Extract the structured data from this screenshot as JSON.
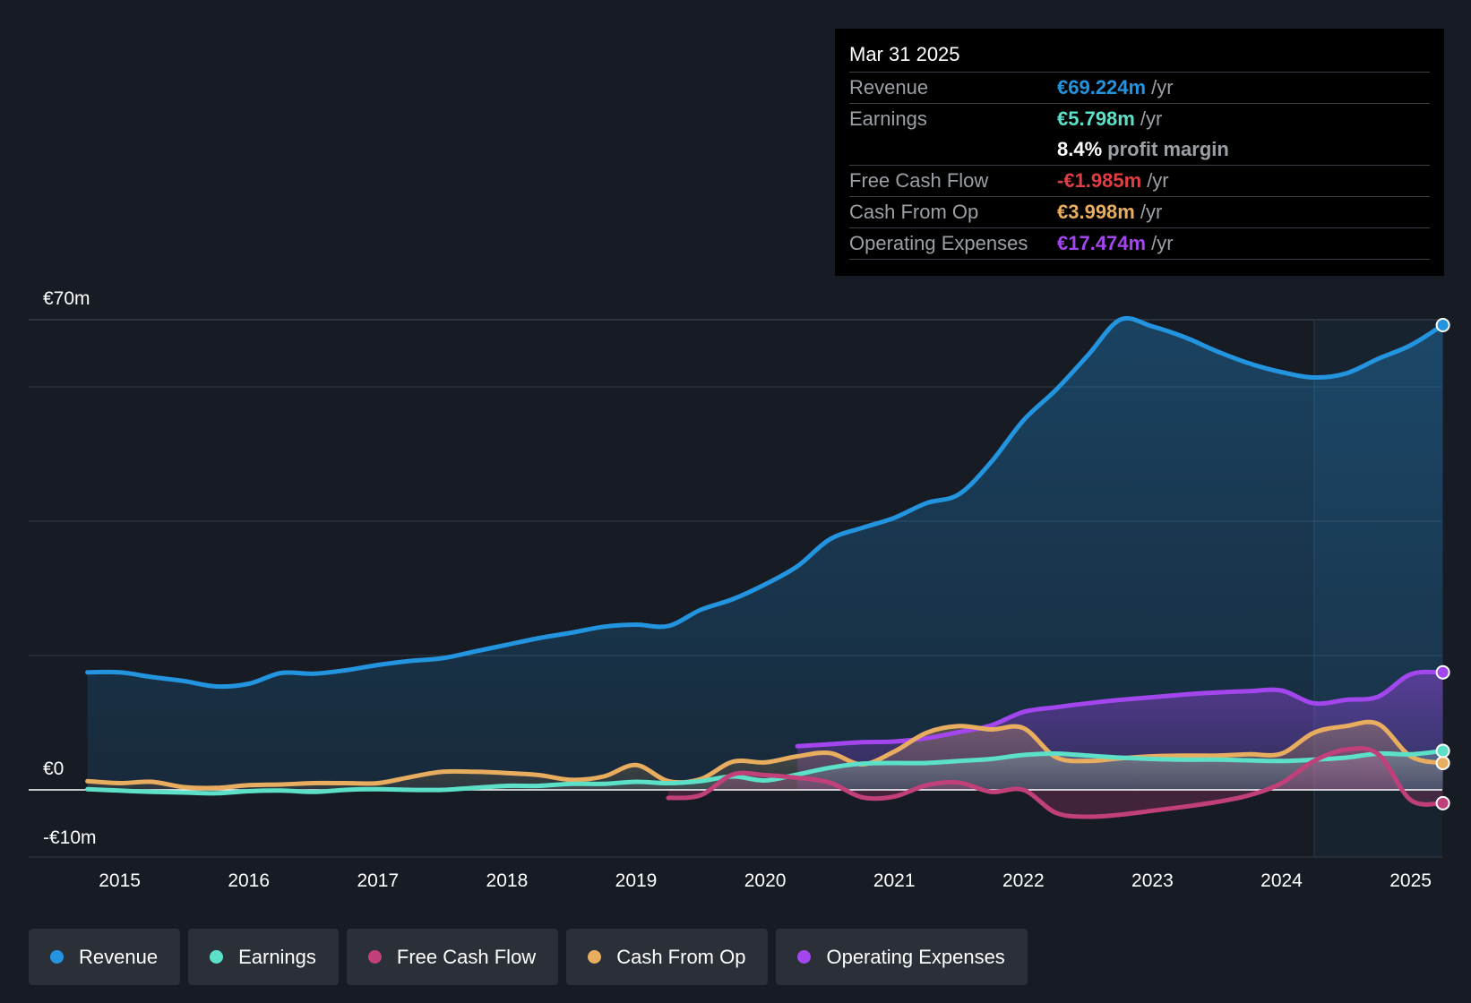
{
  "tooltip": {
    "date": "Mar 31 2025",
    "rows": {
      "revenue": {
        "label": "Revenue",
        "value": "€69.224m",
        "unit": "/yr"
      },
      "earnings": {
        "label": "Earnings",
        "value": "€5.798m",
        "unit": "/yr"
      },
      "margin": {
        "value": "8.4%",
        "unit": "profit margin"
      },
      "fcf": {
        "label": "Free Cash Flow",
        "value": "-€1.985m",
        "unit": "/yr"
      },
      "cfo": {
        "label": "Cash From Op",
        "value": "€3.998m",
        "unit": "/yr"
      },
      "opex": {
        "label": "Operating Expenses",
        "value": "€17.474m",
        "unit": "/yr"
      }
    }
  },
  "legend": [
    {
      "label": "Revenue",
      "color": "#2394df"
    },
    {
      "label": "Earnings",
      "color": "#5de0c8"
    },
    {
      "label": "Free Cash Flow",
      "color": "#c2407a"
    },
    {
      "label": "Cash From Op",
      "color": "#e8ad5e"
    },
    {
      "label": "Operating Expenses",
      "color": "#a346ee"
    }
  ],
  "chart_data": {
    "type": "area",
    "title": "",
    "y_tick_labels": [
      "€70m",
      "€0",
      "-€10m"
    ],
    "ylim": [
      -10,
      70
    ],
    "xlim": [
      2014.3,
      2025.25
    ],
    "x_tick_labels": [
      "2015",
      "2016",
      "2017",
      "2018",
      "2019",
      "2020",
      "2021",
      "2022",
      "2023",
      "2024",
      "2025"
    ],
    "x_ticks": [
      2015,
      2016,
      2017,
      2018,
      2019,
      2020,
      2021,
      2022,
      2023,
      2024,
      2025
    ],
    "gridlines": [
      70,
      60,
      40,
      20,
      0,
      -10
    ],
    "highlight_start": 2024.25,
    "series": [
      {
        "name": "Revenue",
        "color": "#2394df",
        "fill": true,
        "points": [
          [
            2014.75,
            17.5
          ],
          [
            2015.0,
            17.5
          ],
          [
            2015.25,
            16.8
          ],
          [
            2015.5,
            16.2
          ],
          [
            2015.75,
            15.4
          ],
          [
            2016.0,
            15.8
          ],
          [
            2016.25,
            17.4
          ],
          [
            2016.5,
            17.3
          ],
          [
            2016.75,
            17.8
          ],
          [
            2017.0,
            18.6
          ],
          [
            2017.25,
            19.2
          ],
          [
            2017.5,
            19.6
          ],
          [
            2017.75,
            20.6
          ],
          [
            2018.0,
            21.6
          ],
          [
            2018.25,
            22.6
          ],
          [
            2018.5,
            23.4
          ],
          [
            2018.75,
            24.3
          ],
          [
            2019.0,
            24.6
          ],
          [
            2019.25,
            24.4
          ],
          [
            2019.5,
            26.8
          ],
          [
            2019.75,
            28.4
          ],
          [
            2020.0,
            30.6
          ],
          [
            2020.25,
            33.3
          ],
          [
            2020.5,
            37.3
          ],
          [
            2020.75,
            39.0
          ],
          [
            2021.0,
            40.5
          ],
          [
            2021.25,
            42.7
          ],
          [
            2021.5,
            44.0
          ],
          [
            2021.75,
            48.8
          ],
          [
            2022.0,
            55.0
          ],
          [
            2022.25,
            59.5
          ],
          [
            2022.5,
            64.7
          ],
          [
            2022.75,
            70.0
          ],
          [
            2023.0,
            69.0
          ],
          [
            2023.25,
            67.4
          ],
          [
            2023.5,
            65.3
          ],
          [
            2023.75,
            63.5
          ],
          [
            2024.0,
            62.2
          ],
          [
            2024.25,
            61.4
          ],
          [
            2024.5,
            62.0
          ],
          [
            2024.75,
            64.2
          ],
          [
            2025.0,
            66.2
          ],
          [
            2025.25,
            69.2
          ]
        ]
      },
      {
        "name": "Operating Expenses",
        "color": "#a346ee",
        "fill": true,
        "points": [
          [
            2020.25,
            6.5
          ],
          [
            2020.5,
            6.8
          ],
          [
            2020.75,
            7.1
          ],
          [
            2021.0,
            7.2
          ],
          [
            2021.25,
            7.7
          ],
          [
            2021.5,
            8.6
          ],
          [
            2021.75,
            9.6
          ],
          [
            2022.0,
            11.6
          ],
          [
            2022.25,
            12.3
          ],
          [
            2022.5,
            12.9
          ],
          [
            2022.75,
            13.4
          ],
          [
            2023.0,
            13.8
          ],
          [
            2023.25,
            14.2
          ],
          [
            2023.5,
            14.5
          ],
          [
            2023.75,
            14.7
          ],
          [
            2024.0,
            14.8
          ],
          [
            2024.25,
            12.9
          ],
          [
            2024.5,
            13.4
          ],
          [
            2024.75,
            13.9
          ],
          [
            2025.0,
            17.2
          ],
          [
            2025.25,
            17.5
          ]
        ]
      },
      {
        "name": "Cash From Op",
        "color": "#e8ad5e",
        "fill": true,
        "points": [
          [
            2014.75,
            1.3
          ],
          [
            2015.0,
            1.0
          ],
          [
            2015.25,
            1.2
          ],
          [
            2015.5,
            0.4
          ],
          [
            2015.75,
            0.3
          ],
          [
            2016.0,
            0.7
          ],
          [
            2016.25,
            0.8
          ],
          [
            2016.5,
            1.0
          ],
          [
            2016.75,
            1.0
          ],
          [
            2017.0,
            1.0
          ],
          [
            2017.25,
            1.9
          ],
          [
            2017.5,
            2.7
          ],
          [
            2017.75,
            2.7
          ],
          [
            2018.0,
            2.5
          ],
          [
            2018.25,
            2.2
          ],
          [
            2018.5,
            1.5
          ],
          [
            2018.75,
            2.0
          ],
          [
            2019.0,
            3.7
          ],
          [
            2019.25,
            1.3
          ],
          [
            2019.5,
            1.6
          ],
          [
            2019.75,
            4.2
          ],
          [
            2020.0,
            4.1
          ],
          [
            2020.25,
            5.0
          ],
          [
            2020.5,
            5.5
          ],
          [
            2020.75,
            3.8
          ],
          [
            2021.0,
            5.7
          ],
          [
            2021.25,
            8.5
          ],
          [
            2021.5,
            9.5
          ],
          [
            2021.75,
            9.0
          ],
          [
            2022.0,
            9.2
          ],
          [
            2022.25,
            4.9
          ],
          [
            2022.5,
            4.3
          ],
          [
            2022.75,
            4.7
          ],
          [
            2023.0,
            5.0
          ],
          [
            2023.25,
            5.1
          ],
          [
            2023.5,
            5.1
          ],
          [
            2023.75,
            5.3
          ],
          [
            2024.0,
            5.4
          ],
          [
            2024.25,
            8.5
          ],
          [
            2024.5,
            9.5
          ],
          [
            2024.75,
            9.8
          ],
          [
            2025.0,
            5.0
          ],
          [
            2025.25,
            4.0
          ]
        ]
      },
      {
        "name": "Earnings",
        "color": "#5de0c8",
        "fill": true,
        "points": [
          [
            2014.75,
            0.1
          ],
          [
            2015.0,
            -0.1
          ],
          [
            2015.25,
            -0.3
          ],
          [
            2015.5,
            -0.4
          ],
          [
            2015.75,
            -0.5
          ],
          [
            2016.0,
            -0.2
          ],
          [
            2016.25,
            -0.1
          ],
          [
            2016.5,
            -0.3
          ],
          [
            2016.75,
            0.0
          ],
          [
            2017.0,
            0.1
          ],
          [
            2017.25,
            0.0
          ],
          [
            2017.5,
            0.0
          ],
          [
            2017.75,
            0.3
          ],
          [
            2018.0,
            0.6
          ],
          [
            2018.25,
            0.6
          ],
          [
            2018.5,
            0.9
          ],
          [
            2018.75,
            0.9
          ],
          [
            2019.0,
            1.2
          ],
          [
            2019.25,
            1.0
          ],
          [
            2019.5,
            1.3
          ],
          [
            2019.75,
            2.0
          ],
          [
            2020.0,
            1.4
          ],
          [
            2020.25,
            2.3
          ],
          [
            2020.5,
            3.3
          ],
          [
            2020.75,
            3.9
          ],
          [
            2021.0,
            4.0
          ],
          [
            2021.25,
            4.0
          ],
          [
            2021.5,
            4.3
          ],
          [
            2021.75,
            4.6
          ],
          [
            2022.0,
            5.2
          ],
          [
            2022.25,
            5.4
          ],
          [
            2022.5,
            5.1
          ],
          [
            2022.75,
            4.8
          ],
          [
            2023.0,
            4.6
          ],
          [
            2023.25,
            4.5
          ],
          [
            2023.5,
            4.5
          ],
          [
            2023.75,
            4.4
          ],
          [
            2024.0,
            4.3
          ],
          [
            2024.25,
            4.5
          ],
          [
            2024.5,
            4.8
          ],
          [
            2024.75,
            5.4
          ],
          [
            2025.0,
            5.3
          ],
          [
            2025.25,
            5.8
          ]
        ]
      },
      {
        "name": "Free Cash Flow",
        "color": "#c2407a",
        "fill": true,
        "points": [
          [
            2019.25,
            -1.2
          ],
          [
            2019.5,
            -0.8
          ],
          [
            2019.75,
            2.3
          ],
          [
            2020.0,
            2.2
          ],
          [
            2020.25,
            1.8
          ],
          [
            2020.5,
            1.1
          ],
          [
            2020.75,
            -1.1
          ],
          [
            2021.0,
            -1.0
          ],
          [
            2021.25,
            0.7
          ],
          [
            2021.5,
            1.1
          ],
          [
            2021.75,
            -0.3
          ],
          [
            2022.0,
            0.0
          ],
          [
            2022.25,
            -3.4
          ],
          [
            2022.5,
            -4.0
          ],
          [
            2022.75,
            -3.7
          ],
          [
            2023.0,
            -3.1
          ],
          [
            2023.25,
            -2.5
          ],
          [
            2023.5,
            -1.8
          ],
          [
            2023.75,
            -0.8
          ],
          [
            2024.0,
            1.0
          ],
          [
            2024.25,
            4.3
          ],
          [
            2024.5,
            6.0
          ],
          [
            2024.75,
            5.3
          ],
          [
            2025.0,
            -1.5
          ],
          [
            2025.25,
            -1.985
          ]
        ]
      }
    ]
  }
}
